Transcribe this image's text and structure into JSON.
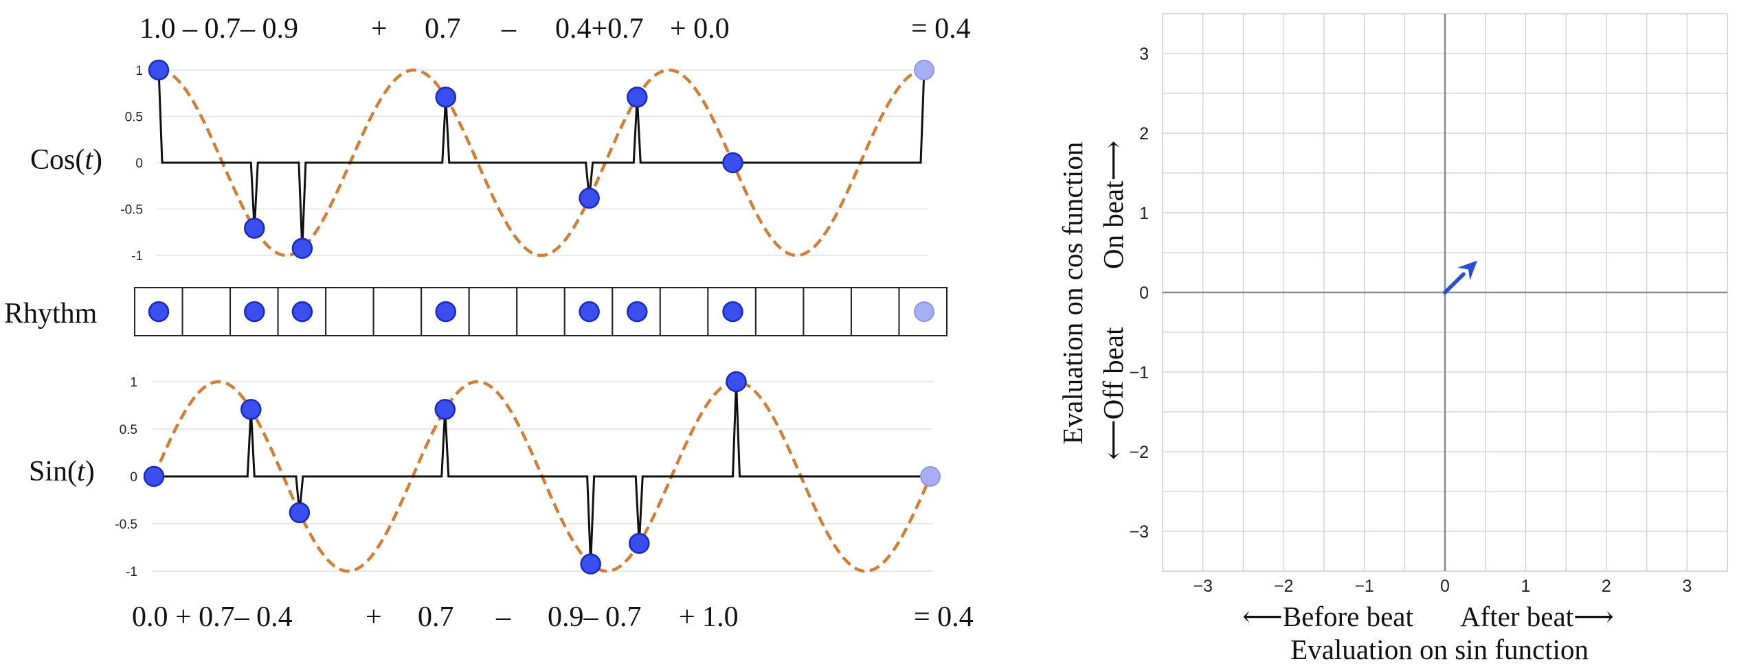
{
  "cos_equation": {
    "terms": [
      "1.0 – 0.7– 0.9",
      "+",
      "0.7",
      "–",
      "0.4+0.7",
      "+ 0.0"
    ],
    "result": "=  0.4"
  },
  "sin_equation": {
    "terms": [
      "0.0 + 0.7– 0.4",
      "+",
      "0.7",
      "–",
      "0.9– 0.7",
      "+ 1.0"
    ],
    "result": "=  0.4"
  },
  "row_labels": {
    "cos_prefix": "Cos(",
    "sin_prefix": "Sin(",
    "var": "t",
    "suffix": ")",
    "rhythm": "Rhythm"
  },
  "wave_ticks": [
    "1",
    "0.5",
    "0",
    "-0.5",
    "-1"
  ],
  "rhythm": {
    "steps": 16,
    "active_steps": [
      0,
      2,
      3,
      6,
      9,
      10,
      12
    ],
    "faded_step": 16
  },
  "colors": {
    "dot": "#3b4ff0",
    "dot_stroke": "#1a2ab8",
    "dot_faded": "#a7aef2",
    "wave": "#cf7f3a",
    "impulse": "#111111",
    "arrow": "#2a4bd4",
    "grid": "#cfcfcf",
    "axis": "#8a8a8a"
  },
  "chart_data": {
    "type": "scatter",
    "x": [
      0.4
    ],
    "y": [
      0.4
    ],
    "xlim": [
      -3.5,
      3.5
    ],
    "ylim": [
      -3.5,
      3.5
    ],
    "xticks": [
      "−3",
      "−2",
      "−1",
      "0",
      "1",
      "2",
      "3"
    ],
    "yticks": [
      "3",
      "2",
      "1",
      "0",
      "−1",
      "−2",
      "−3"
    ],
    "grid": true,
    "x_side_labels": [
      "⟵Before beat",
      "After beat⟶"
    ],
    "xlabel": "Evaluation on sin function",
    "y_side_labels": [
      "⟵Off beat",
      "On beat⟶"
    ],
    "ylabel": "Evaluation on cos function"
  }
}
